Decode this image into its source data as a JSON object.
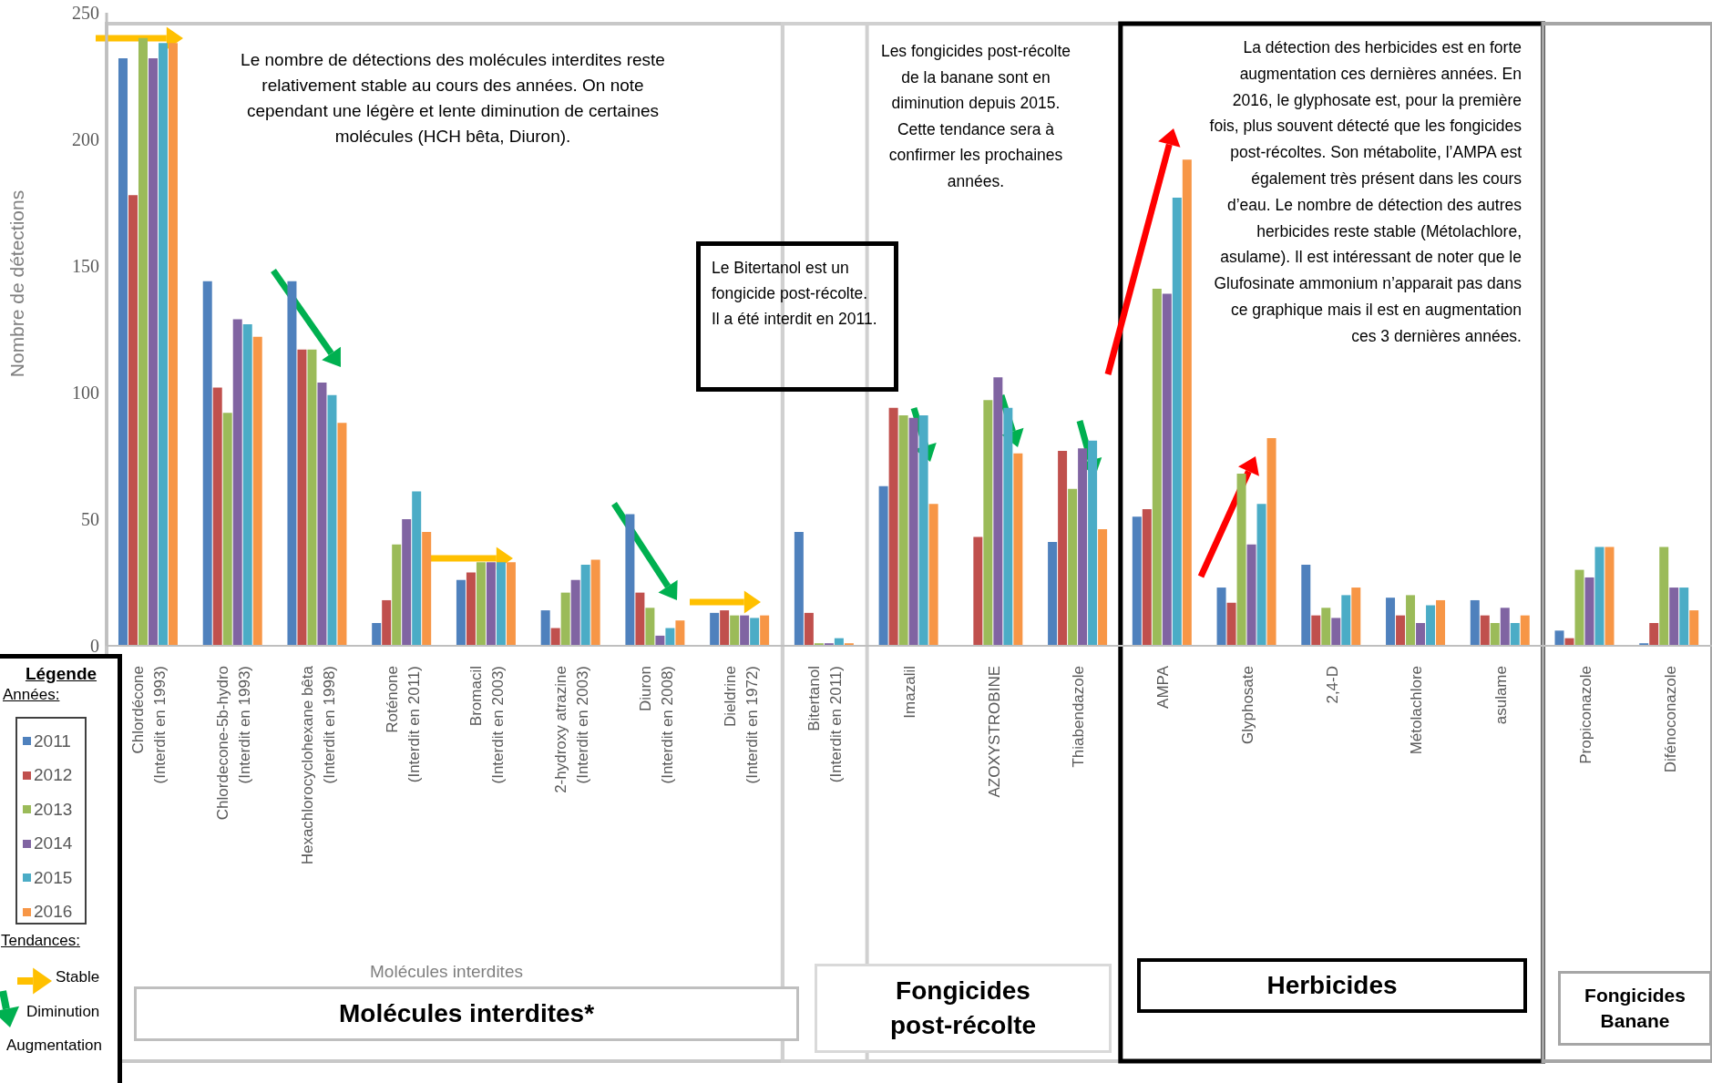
{
  "chart_data": {
    "type": "bar",
    "ylabel": "Nombre de détections",
    "legend_title": "Légende",
    "legend": "bottom left",
    "categories": [
      "Chlordécone\n(Interdit en 1993)",
      "Chlordecone-5b-hydro\n(Interdit en 1993)",
      "Hexachlorocyclohexane bêta\n(Interdit en 1998)",
      "Roténone\n(Interdit en 2011)",
      "Bromacil\n(Interdit en 2003)",
      "2-hydroxy atrazine\n(Interdit en 2003)",
      "Diuron\n(Interdit en 2008)",
      "Dieldrine\n(Interdit en 1972)",
      "Bitertanol\n(Interdit en 2011)",
      "Imazalil",
      "AZOXYSTROBINE",
      "Thiabendazole",
      "AMPA",
      "Glyphosate",
      "2,4-D",
      "Métolachlore",
      "asulame",
      "Propiconazole",
      "Difénoconazole"
    ],
    "series": [
      {
        "name": "2011",
        "color": "#4f81bd",
        "values": [
          232,
          144,
          144,
          9,
          26,
          14,
          52,
          13,
          45,
          63,
          null,
          41,
          51,
          23,
          32,
          19,
          18,
          6,
          1
        ]
      },
      {
        "name": "2012",
        "color": "#c0504d",
        "values": [
          178,
          102,
          117,
          18,
          29,
          7,
          21,
          14,
          13,
          94,
          43,
          77,
          54,
          17,
          12,
          12,
          12,
          3,
          9
        ]
      },
      {
        "name": "2013",
        "color": "#9bbb59",
        "values": [
          240,
          92,
          117,
          40,
          33,
          21,
          15,
          12,
          1,
          91,
          97,
          62,
          141,
          68,
          15,
          20,
          9,
          30,
          39
        ]
      },
      {
        "name": "2014",
        "color": "#8064a2",
        "values": [
          232,
          129,
          104,
          50,
          33,
          26,
          4,
          12,
          1,
          90,
          106,
          78,
          139,
          40,
          11,
          9,
          15,
          27,
          23
        ]
      },
      {
        "name": "2015",
        "color": "#4bacc6",
        "values": [
          238,
          127,
          99,
          61,
          33,
          32,
          7,
          11,
          3,
          91,
          94,
          81,
          177,
          56,
          20,
          16,
          9,
          39,
          23
        ]
      },
      {
        "name": "2016",
        "color": "#f79646",
        "values": [
          238,
          122,
          88,
          45,
          33,
          34,
          10,
          12,
          1,
          56,
          76,
          46,
          192,
          82,
          23,
          18,
          12,
          39,
          14
        ]
      }
    ],
    "ylim": [
      0,
      250
    ],
    "yticks": [
      0,
      50,
      100,
      150,
      200,
      250
    ],
    "annotations": [
      "Le nombre de détections des molécules interdites reste relativement stable au cours des années. On note cependant une légère et lente diminution de certaines molécules (HCH bêta, Diuron).",
      "Les fongicides post-récolte de la banane sont en diminution depuis 2015. Cette tendance sera à confirmer les prochaines années.",
      "La détection des herbicides est en forte augmentation ces dernières années. En 2016, le glyphosate est, pour la première fois, plus souvent détecté que les fongicides post-récoltes. Son métabolite, l’AMPA est également très présent dans les cours d’eau. Le nombre de détection des autres herbicides reste stable (Métolachlore, asulame). Il est intéressant de noter que le Glufosinate ammonium n’apparait pas dans ce graphique mais il est en augmentation ces 3 dernières années.",
      "Le Bitertanol est un fongicide post-récolte.\nIl a été interdit en 2011.",
      "Molécules interdites",
      "Molécules interdites*",
      "Fongicides post-récolte",
      "Herbicides",
      "Fongicides Banane",
      "Années:",
      "Tendances:",
      "Stable",
      "Diminution",
      "Augmentation"
    ]
  }
}
